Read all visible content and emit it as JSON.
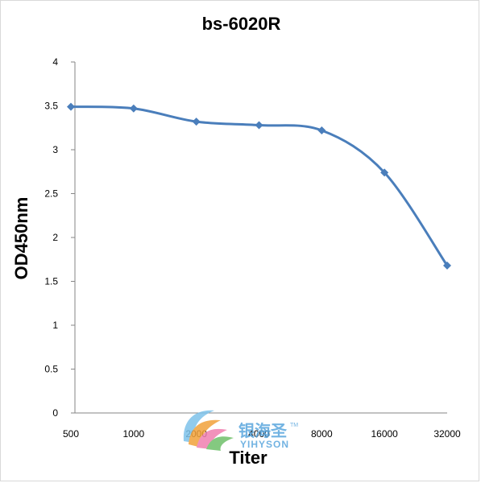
{
  "chart_data": {
    "type": "line",
    "title": "bs-6020R",
    "xlabel": "Titer",
    "ylabel": "OD450nm",
    "categories": [
      "500",
      "1000",
      "2000",
      "4000",
      "8000",
      "16000",
      "32000"
    ],
    "series": [
      {
        "values": [
          3.49,
          3.47,
          3.32,
          3.28,
          3.22,
          2.74,
          1.68
        ]
      }
    ],
    "ylim": [
      0,
      4
    ],
    "yticks": [
      "0",
      "0.5",
      "1",
      "1.5",
      "2",
      "2.5",
      "3",
      "3.5",
      "4"
    ],
    "ytick_values": [
      0,
      0.5,
      1,
      1.5,
      2,
      2.5,
      3,
      3.5,
      4
    ],
    "grid": false,
    "legend": "none",
    "smooth": true,
    "marker": "diamond",
    "line_color": "#4a7ebb"
  },
  "watermark": {
    "cn": "银海圣",
    "en": "YIHYSON",
    "tm": "TM"
  }
}
